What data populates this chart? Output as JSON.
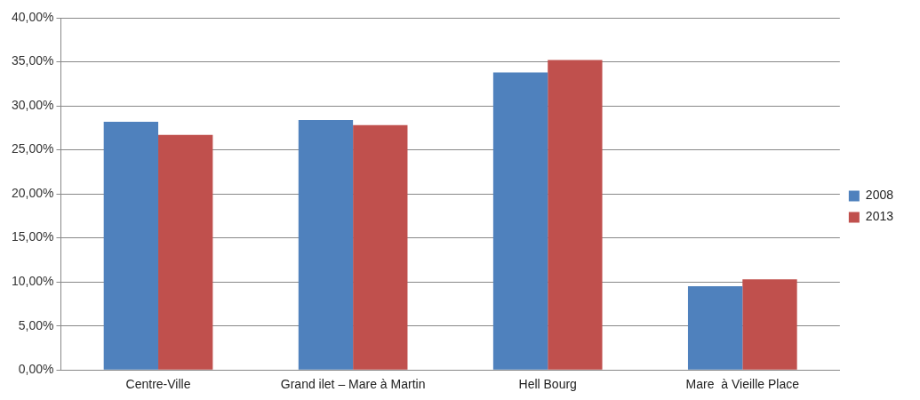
{
  "chart_data": {
    "type": "bar",
    "categories": [
      "Centre-Ville",
      "Grand ilet – Mare à Martin",
      "Hell Bourg",
      "Mare  à Vieille Place"
    ],
    "series": [
      {
        "name": "2008",
        "color": "#4f81bd",
        "values": [
          28.2,
          28.4,
          33.8,
          9.5
        ]
      },
      {
        "name": "2013",
        "color": "#c0504d",
        "values": [
          26.7,
          27.8,
          35.2,
          10.3
        ]
      }
    ],
    "ylim": [
      0,
      40
    ],
    "yticks": [
      {
        "value": 0,
        "label": "0,00%"
      },
      {
        "value": 5,
        "label": "5,00%"
      },
      {
        "value": 10,
        "label": "10,00%"
      },
      {
        "value": 15,
        "label": "15,00%"
      },
      {
        "value": 20,
        "label": "20,00%"
      },
      {
        "value": 25,
        "label": "25,00%"
      },
      {
        "value": 30,
        "label": "30,00%"
      },
      {
        "value": 35,
        "label": "35,00%"
      },
      {
        "value": 40,
        "label": "40,00%"
      }
    ],
    "grid": "y",
    "legend": "right"
  }
}
